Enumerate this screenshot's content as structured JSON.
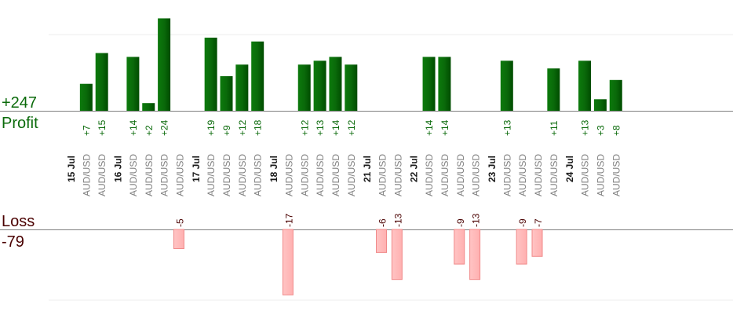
{
  "chart_data": {
    "type": "bar",
    "profit": {
      "label": "Profit",
      "total": "+247"
    },
    "loss": {
      "label": "Loss",
      "total": "-79"
    },
    "instrument": "AUD/USD",
    "days": [
      {
        "date": "15 Jul",
        "trades": [
          7,
          15
        ]
      },
      {
        "date": "16 Jul",
        "trades": [
          14,
          2,
          24,
          -5
        ]
      },
      {
        "date": "17 Jul",
        "trades": [
          19,
          9,
          12,
          18
        ]
      },
      {
        "date": "18 Jul",
        "trades": [
          -17,
          12,
          13,
          14,
          12
        ]
      },
      {
        "date": "21 Jul",
        "trades": [
          -6,
          -13
        ]
      },
      {
        "date": "22 Jul",
        "trades": [
          14,
          14,
          -9,
          -13
        ]
      },
      {
        "date": "23 Jul",
        "trades": [
          13,
          -9,
          -7,
          11
        ]
      },
      {
        "date": "24 Jul",
        "trades": [
          13,
          3,
          8
        ]
      }
    ],
    "colors": {
      "profit": "#0a6a0a",
      "loss": "#ffb0b0",
      "loss_text": "#4a0000"
    }
  }
}
